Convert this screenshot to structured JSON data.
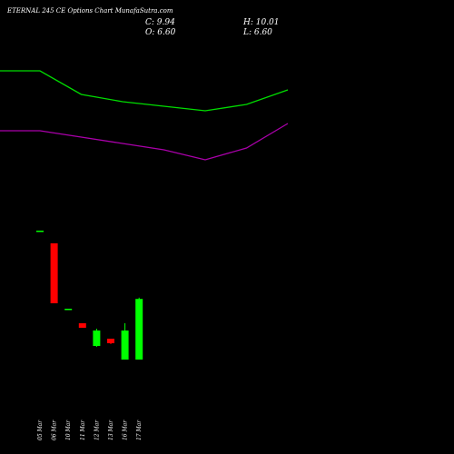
{
  "title": "ETERNAL 245 CE Options  Chart MunafaSutra.com",
  "ohlc": {
    "close_label": "C: 9.94",
    "high_label": "H: 10.01",
    "open_label": "O: 6.60",
    "low_label": "L: 6.60"
  },
  "colors": {
    "background": "#000000",
    "up": "#00ff00",
    "down": "#ff0000",
    "upper_band": "#00dd00",
    "lower_band": "#aa00aa",
    "text": "#ffffff"
  },
  "chart_data": {
    "type": "candlestick",
    "categories": [
      "05 Mar",
      "06 Mar",
      "10 Mar",
      "11 Mar",
      "12 Mar",
      "13 Mar",
      "16 Mar",
      "17 Mar"
    ],
    "candles": [
      {
        "open": 13.7,
        "high": 13.7,
        "low": 13.7,
        "close": 13.7
      },
      {
        "open": 13.0,
        "high": 13.0,
        "low": 9.7,
        "close": 9.7
      },
      {
        "open": 9.4,
        "high": 9.4,
        "low": 9.4,
        "close": 9.4
      },
      {
        "open": 8.6,
        "high": 8.6,
        "low": 8.35,
        "close": 8.35
      },
      {
        "open": 7.35,
        "high": 8.3,
        "low": 7.3,
        "close": 8.2
      },
      {
        "open": 7.75,
        "high": 7.75,
        "low": 7.45,
        "close": 7.5
      },
      {
        "open": 6.6,
        "high": 8.6,
        "low": 6.6,
        "close": 8.2
      },
      {
        "open": 6.6,
        "high": 10.01,
        "low": 6.6,
        "close": 9.94
      }
    ],
    "bands": {
      "upper": [
        22.5,
        22.5,
        21.2,
        20.8,
        20.55,
        20.3,
        20.65,
        21.45
      ],
      "lower": [
        19.2,
        19.2,
        18.85,
        18.5,
        18.15,
        17.6,
        18.25,
        19.6
      ]
    },
    "ylim": [
      4,
      26.4
    ]
  }
}
